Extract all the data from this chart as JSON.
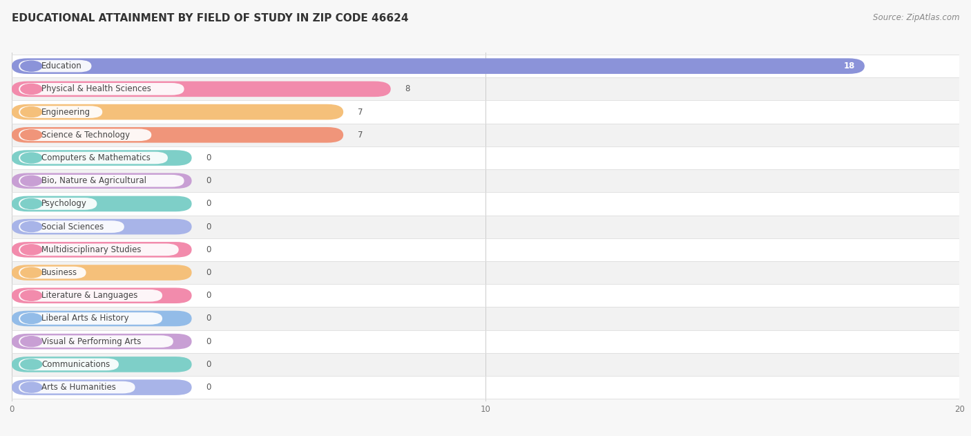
{
  "title": "EDUCATIONAL ATTAINMENT BY FIELD OF STUDY IN ZIP CODE 46624",
  "source": "Source: ZipAtlas.com",
  "categories": [
    "Education",
    "Physical & Health Sciences",
    "Engineering",
    "Science & Technology",
    "Computers & Mathematics",
    "Bio, Nature & Agricultural",
    "Psychology",
    "Social Sciences",
    "Multidisciplinary Studies",
    "Business",
    "Literature & Languages",
    "Liberal Arts & History",
    "Visual & Performing Arts",
    "Communications",
    "Arts & Humanities"
  ],
  "values": [
    18,
    8,
    7,
    7,
    0,
    0,
    0,
    0,
    0,
    0,
    0,
    0,
    0,
    0,
    0
  ],
  "bar_colors": [
    "#8b93d9",
    "#f28bac",
    "#f5c07a",
    "#f0957a",
    "#7ecfc8",
    "#c89fd4",
    "#7ecfc8",
    "#a8b4e8",
    "#f28bac",
    "#f5c07a",
    "#f28bac",
    "#93bce8",
    "#c89fd4",
    "#7ecfc8",
    "#a8b4e8"
  ],
  "xlim": [
    0,
    20
  ],
  "xticks": [
    0,
    10,
    20
  ],
  "background_color": "#f7f7f7",
  "row_bg_even": "#ffffff",
  "row_bg_odd": "#f2f2f2",
  "title_fontsize": 11,
  "source_fontsize": 8.5,
  "label_fontsize": 8.5,
  "value_fontsize": 8.5,
  "zero_bar_width": 3.8
}
